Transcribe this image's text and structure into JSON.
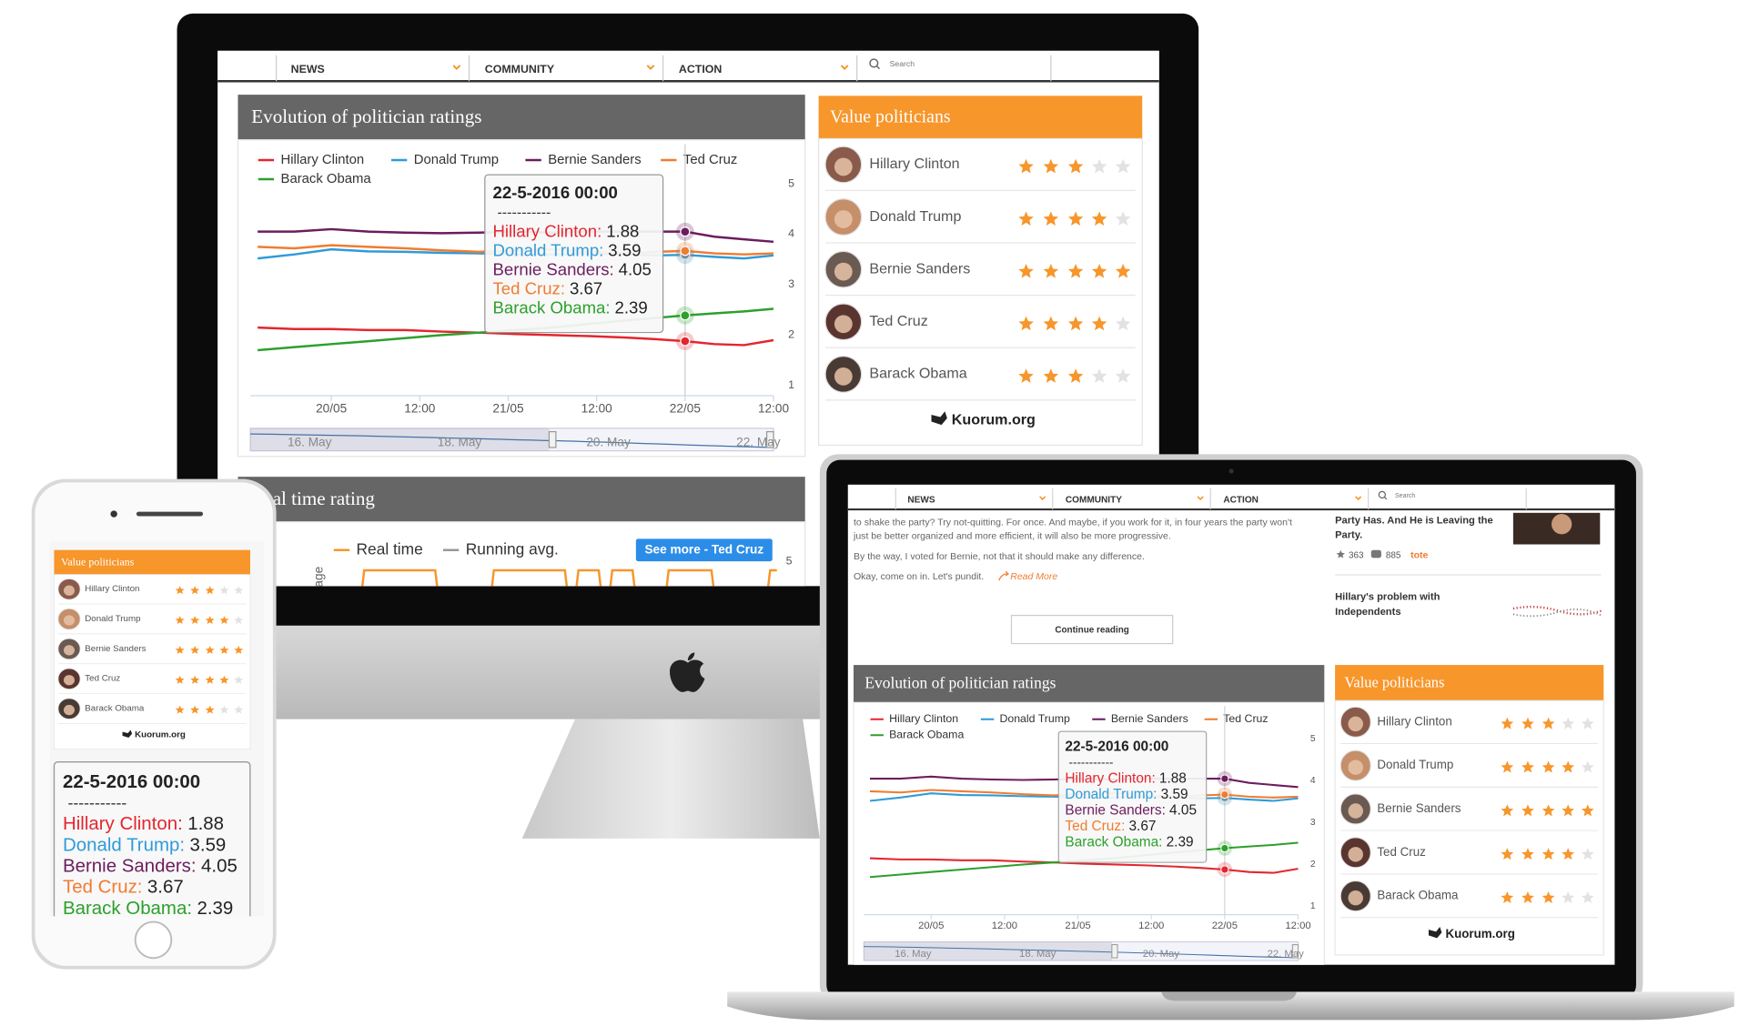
{
  "nav": {
    "items": [
      "NEWS",
      "COMMUNITY",
      "ACTION"
    ],
    "search": "Search"
  },
  "ratings_chart": {
    "type": "line",
    "title": "Evolution of politician ratings",
    "x": [
      -10,
      -5,
      0,
      5,
      10,
      15,
      20,
      25,
      30,
      35,
      40,
      44,
      48,
      52,
      56,
      60
    ],
    "xlim": [
      -11,
      60
    ],
    "xticks": [
      {
        "value": 0,
        "label": "20/05"
      },
      {
        "value": 12,
        "label": "12:00"
      },
      {
        "value": 24,
        "label": "21/05"
      },
      {
        "value": 36,
        "label": "12:00"
      },
      {
        "value": 48,
        "label": "22/05"
      },
      {
        "value": 60,
        "label": "12:00"
      }
    ],
    "ylim": [
      0.8,
      5.3
    ],
    "yticks": [
      1,
      2,
      3,
      4,
      5
    ],
    "series": [
      {
        "name": "Hillary Clinton",
        "color": "#e3262f",
        "values": [
          2.15,
          2.12,
          2.12,
          2.1,
          2.1,
          2.07,
          2.05,
          2.02,
          2.0,
          1.98,
          1.95,
          1.92,
          1.88,
          1.82,
          1.8,
          1.9
        ]
      },
      {
        "name": "Donald Trump",
        "color": "#2f9bd8",
        "values": [
          3.52,
          3.6,
          3.7,
          3.66,
          3.65,
          3.63,
          3.62,
          3.6,
          3.6,
          3.62,
          3.6,
          3.58,
          3.59,
          3.55,
          3.52,
          3.58
        ]
      },
      {
        "name": "Bernie Sanders",
        "color": "#6b1d5e",
        "values": [
          4.05,
          4.05,
          4.1,
          4.05,
          4.03,
          4.02,
          4.03,
          4.05,
          4.03,
          4.05,
          4.05,
          4.05,
          4.05,
          3.95,
          3.9,
          3.85
        ]
      },
      {
        "name": "Ted Cruz",
        "color": "#f07c30",
        "values": [
          3.75,
          3.72,
          3.78,
          3.75,
          3.72,
          3.68,
          3.65,
          3.68,
          3.7,
          3.65,
          3.62,
          3.65,
          3.67,
          3.62,
          3.6,
          3.62
        ]
      },
      {
        "name": "Barack Obama",
        "color": "#2ca02c",
        "values": [
          1.7,
          1.76,
          1.82,
          1.88,
          1.94,
          2.0,
          2.05,
          2.1,
          2.15,
          2.22,
          2.29,
          2.34,
          2.39,
          2.43,
          2.47,
          2.52
        ]
      }
    ],
    "tooltip": {
      "date": "22-5-2016 00:00",
      "separator": "-----------",
      "name_separator": ":",
      "x": 48,
      "values": [
        1.88,
        3.59,
        4.05,
        3.67,
        2.39
      ]
    },
    "navigator_labels": [
      "16. May",
      "18. May",
      "20. May",
      "22. May"
    ]
  },
  "value_politicians": {
    "title": "Value politicians",
    "politicians": [
      {
        "name": "Hillary Clinton",
        "rating": 3
      },
      {
        "name": "Donald Trump",
        "rating": 4
      },
      {
        "name": "Bernie Sanders",
        "rating": 5
      },
      {
        "name": "Ted Cruz",
        "rating": 4
      },
      {
        "name": "Barack Obama",
        "rating": 3
      }
    ],
    "brand": "Kuorum.org"
  },
  "realtime_chart": {
    "title": "Real time rating",
    "legend": [
      {
        "name": "Real time",
        "color": "#f7962b"
      },
      {
        "name": "Running avg.",
        "color": "#999999"
      }
    ],
    "button": "See more - Ted Cruz",
    "y_label": "Average",
    "yticks": [
      5
    ]
  },
  "article": {
    "lines": [
      "to shake the party? Try not-quitting. For once. And maybe, if you work for it, in four years the party won't",
      "just be better organized and more efficient, it will also be more progressive."
    ],
    "footnote": "By the way, I voted for Bernie, not that it should make any difference.",
    "closing": "Okay, come on in. Let's pundit.",
    "read_more": "Read More",
    "continue": "Continue reading"
  },
  "sidebar": {
    "items": [
      {
        "title_lines": [
          "Party Has. And He is Leaving the",
          "Party."
        ],
        "votes": 363,
        "comments": 885,
        "tag": "tote"
      },
      {
        "title_lines": [
          "Hillary's problem with",
          "Independents"
        ]
      }
    ]
  }
}
